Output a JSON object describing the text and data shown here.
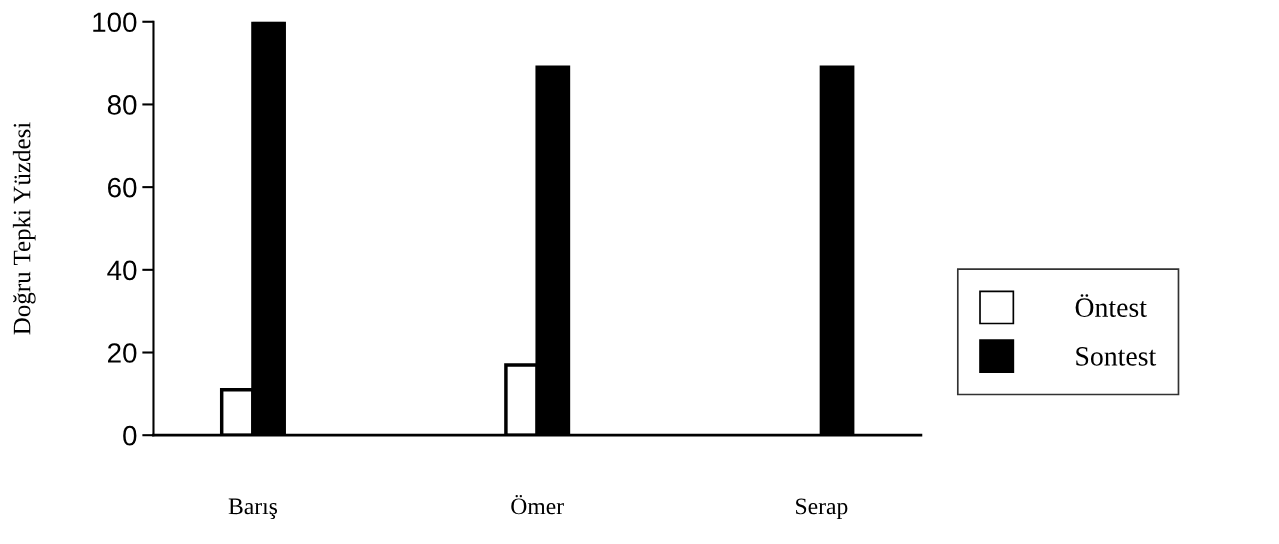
{
  "chart_data": {
    "type": "bar",
    "ylabel": "Doğru Tepki Yüzdesi",
    "categories": [
      "Barış",
      "Ömer",
      "Serap"
    ],
    "series": [
      {
        "name": "Öntest",
        "color": "#ffffff",
        "values": [
          11,
          17,
          null
        ]
      },
      {
        "name": "Sontest",
        "color": "#000000",
        "values": [
          100,
          89,
          89
        ]
      }
    ],
    "ylim": [
      0,
      100
    ],
    "yticks": [
      0,
      20,
      40,
      60,
      80,
      100
    ],
    "grid": false,
    "legend": "right"
  }
}
